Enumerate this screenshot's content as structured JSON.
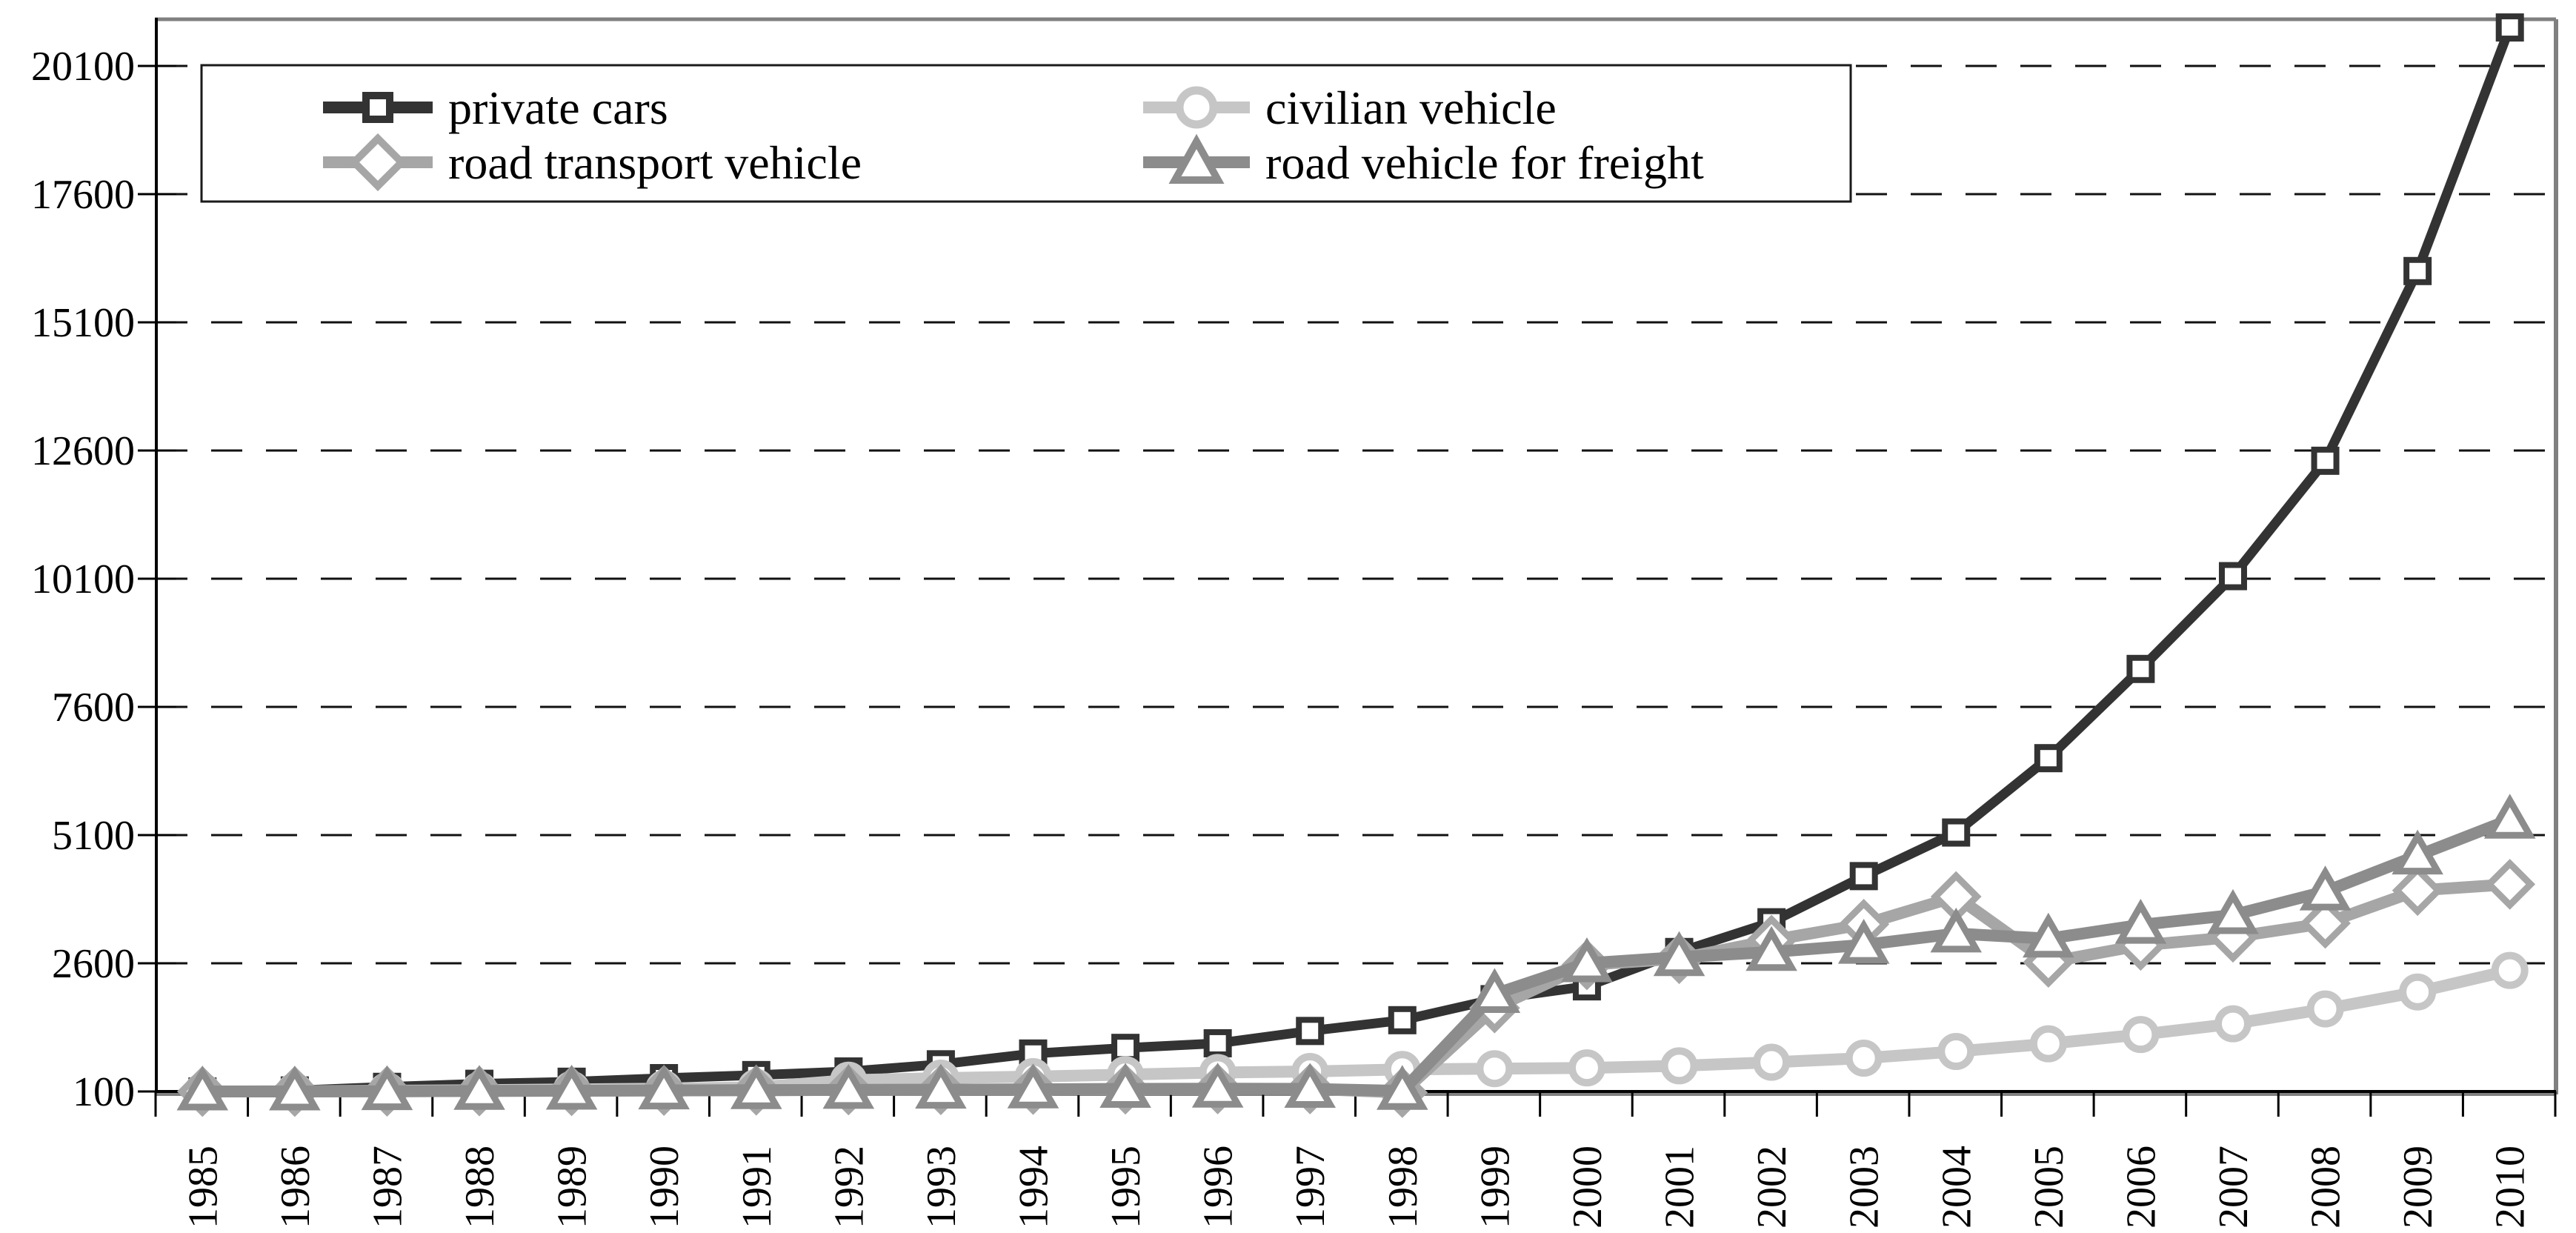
{
  "chart_data": {
    "type": "line",
    "title": "",
    "xlabel": "",
    "ylabel": "",
    "x": [
      "1985",
      "1986",
      "1987",
      "1988",
      "1989",
      "1990",
      "1991",
      "1992",
      "1993",
      "1994",
      "1995",
      "1996",
      "1997",
      "1998",
      "1999",
      "2000",
      "2001",
      "2002",
      "2003",
      "2004",
      "2005",
      "2006",
      "2007",
      "2008",
      "2009",
      "2010"
    ],
    "y_ticks": [
      100,
      2600,
      5100,
      7600,
      10100,
      12600,
      15100,
      17600,
      20100
    ],
    "ylim": [
      100,
      21010
    ],
    "grid": "horizontal-dashed",
    "legend_position": "top-left-inside",
    "series": [
      {
        "name": "private cars",
        "marker": "square",
        "color": "#333333",
        "line_width": 13,
        "values": [
          100,
          120,
          190,
          250,
          290,
          360,
          420,
          490,
          630,
          840,
          950,
          1040,
          1280,
          1490,
          1900,
          2150,
          2820,
          3400,
          4300,
          5150,
          6600,
          8340,
          10150,
          12400,
          16100,
          20850
        ]
      },
      {
        "name": "road transport vehicle",
        "marker": "diamond",
        "color": "#a6a6a6",
        "line_width": 16,
        "values": [
          100,
          100,
          105,
          110,
          115,
          120,
          125,
          130,
          135,
          140,
          145,
          150,
          150,
          80,
          1730,
          2570,
          2690,
          3050,
          3360,
          3900,
          2620,
          2950,
          3110,
          3380,
          4020,
          4140
        ]
      },
      {
        "name": "civilian vehicle",
        "marker": "circle",
        "color": "#c6c6c6",
        "line_width": 16,
        "values": [
          100,
          105,
          115,
          125,
          140,
          155,
          180,
          320,
          360,
          390,
          430,
          470,
          490,
          530,
          545,
          560,
          600,
          670,
          750,
          880,
          1030,
          1210,
          1420,
          1710,
          2040,
          2460
        ]
      },
      {
        "name": "road vehicle for freight",
        "marker": "triangle",
        "color": "#8c8c8c",
        "line_width": 16,
        "values": [
          100,
          100,
          105,
          110,
          115,
          120,
          125,
          130,
          135,
          140,
          150,
          155,
          150,
          110,
          2000,
          2600,
          2720,
          2820,
          2960,
          3180,
          3080,
          3350,
          3540,
          4000,
          4700,
          5400
        ]
      }
    ],
    "draw_order": [
      0,
      2,
      1,
      3
    ]
  },
  "legend": {
    "border_color": "#1a1a1a"
  },
  "colors": {
    "plot_border": "#808080",
    "axis": "#000000",
    "gridline": "#111111",
    "background": "#ffffff"
  }
}
